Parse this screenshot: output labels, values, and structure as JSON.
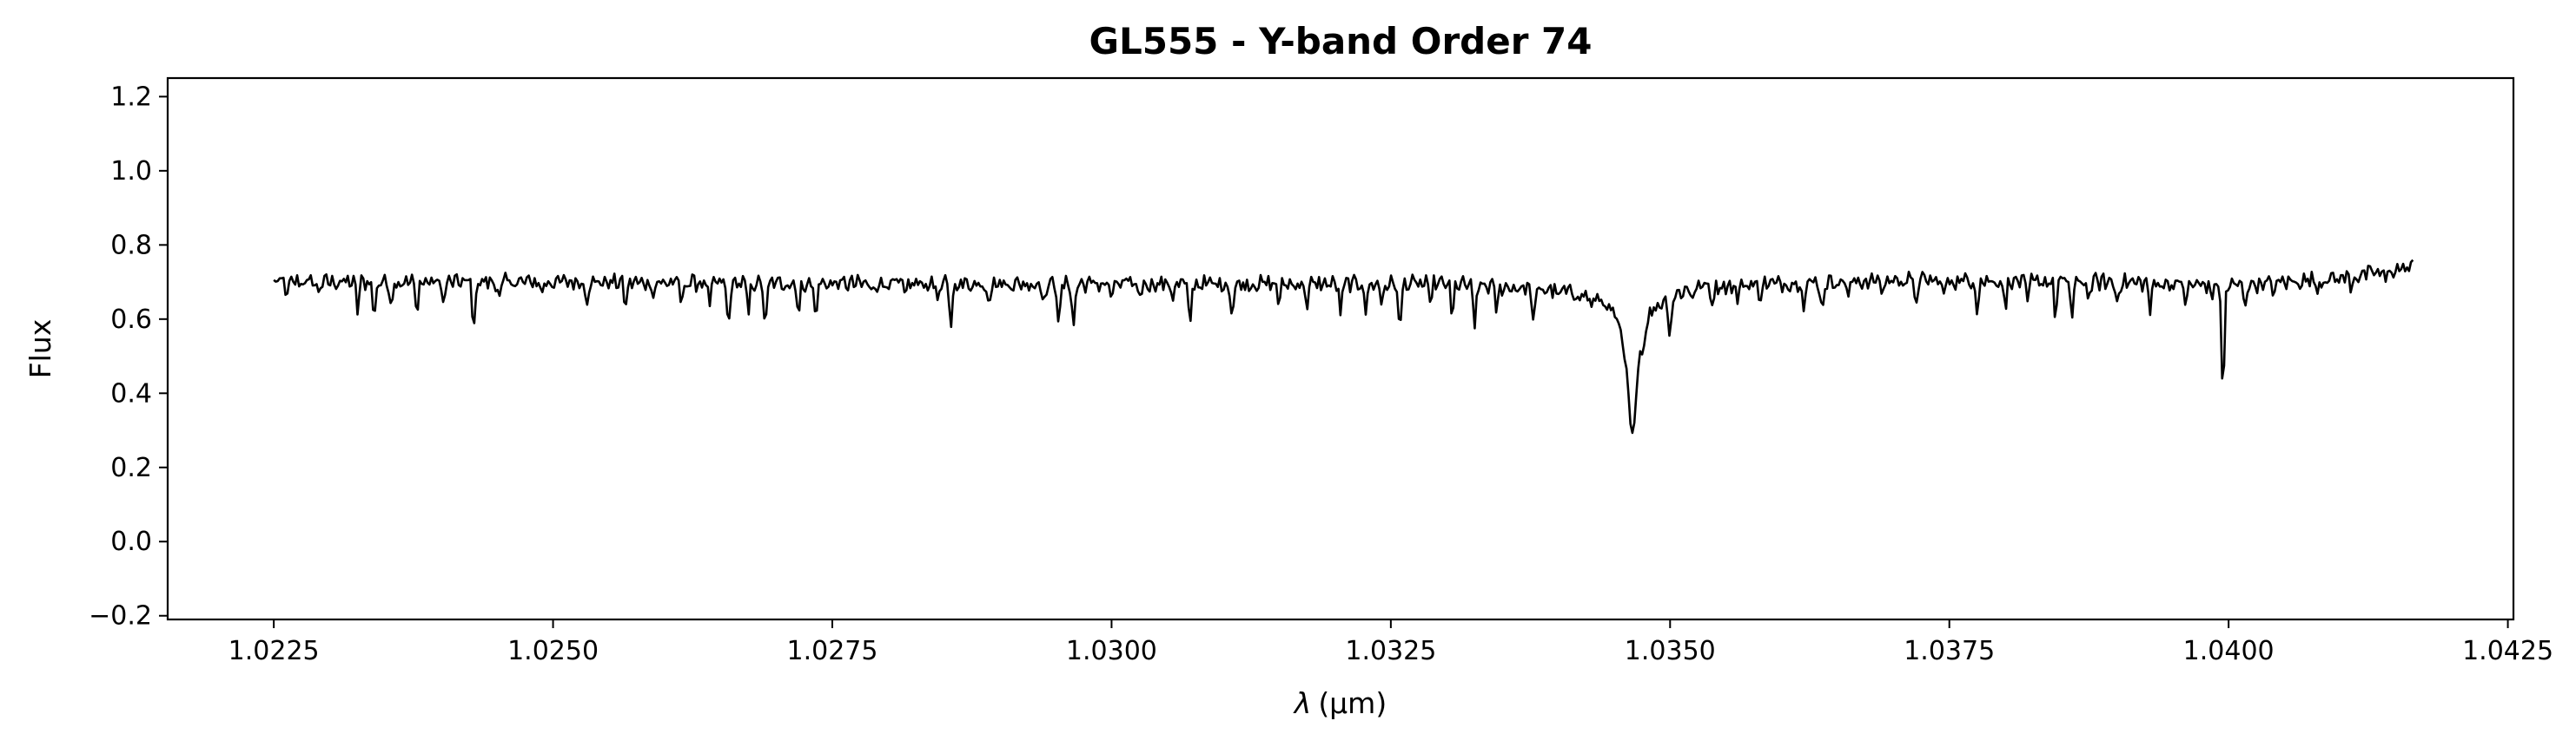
{
  "chart_data": {
    "type": "line",
    "title": "GL555 - Y-band Order 74",
    "xlabel_symbol": "λ",
    "xlabel_unit": "(μm)",
    "ylabel": "Flux",
    "xlim": [
      1.02155,
      1.04255
    ],
    "ylim": [
      -0.21,
      1.25
    ],
    "x_ticks": [
      1.0225,
      1.025,
      1.0275,
      1.03,
      1.0325,
      1.035,
      1.0375,
      1.04,
      1.0425
    ],
    "x_tick_labels": [
      "1.0225",
      "1.0250",
      "1.0275",
      "1.0300",
      "1.0325",
      "1.0350",
      "1.0375",
      "1.0400",
      "1.0425"
    ],
    "y_ticks": [
      -0.2,
      0.0,
      0.2,
      0.4,
      0.6,
      0.8,
      1.0,
      1.2
    ],
    "y_tick_labels": [
      "−0.2",
      "0.0",
      "0.2",
      "0.4",
      "0.6",
      "0.8",
      "1.0",
      "1.2"
    ],
    "grid": false,
    "series": [
      {
        "color": "#000000",
        "x_start": 1.0225,
        "x_end": 1.04165,
        "continuum": [
          [
            1.0225,
            0.7
          ],
          [
            1.024,
            0.7
          ],
          [
            1.025,
            0.7
          ],
          [
            1.028,
            0.695
          ],
          [
            1.03,
            0.695
          ],
          [
            1.033,
            0.695
          ],
          [
            1.034,
            0.68
          ],
          [
            1.0344,
            0.66
          ],
          [
            1.0346,
            0.62
          ],
          [
            1.0352,
            0.69
          ],
          [
            1.037,
            0.705
          ],
          [
            1.039,
            0.7
          ],
          [
            1.04,
            0.69
          ],
          [
            1.041,
            0.71
          ],
          [
            1.04165,
            0.74
          ]
        ],
        "absorption_lines": [
          [
            1.02262,
            0.66
          ],
          [
            1.0229,
            0.67
          ],
          [
            1.02325,
            0.625
          ],
          [
            1.0234,
            0.6
          ],
          [
            1.02355,
            0.64
          ],
          [
            1.02378,
            0.62
          ],
          [
            1.02402,
            0.64
          ],
          [
            1.02429,
            0.57
          ],
          [
            1.02452,
            0.65
          ],
          [
            1.0249,
            0.67
          ],
          [
            1.0253,
            0.65
          ],
          [
            1.02565,
            0.63
          ],
          [
            1.0259,
            0.665
          ],
          [
            1.02615,
            0.64
          ],
          [
            1.0264,
            0.63
          ],
          [
            1.02657,
            0.57
          ],
          [
            1.02675,
            0.61
          ],
          [
            1.0269,
            0.57
          ],
          [
            1.0272,
            0.61
          ],
          [
            1.02735,
            0.6
          ],
          [
            1.02785,
            0.67
          ],
          [
            1.02815,
            0.66
          ],
          [
            1.02845,
            0.65
          ],
          [
            1.02856,
            0.57
          ],
          [
            1.0289,
            0.65
          ],
          [
            1.0294,
            0.64
          ],
          [
            1.02953,
            0.58
          ],
          [
            1.02966,
            0.57
          ],
          [
            1.03,
            0.65
          ],
          [
            1.03025,
            0.66
          ],
          [
            1.03055,
            0.66
          ],
          [
            1.0307,
            0.58
          ],
          [
            1.03108,
            0.6
          ],
          [
            1.0315,
            0.64
          ],
          [
            1.03175,
            0.63
          ],
          [
            1.03205,
            0.61
          ],
          [
            1.03228,
            0.62
          ],
          [
            1.03242,
            0.64
          ],
          [
            1.03258,
            0.56
          ],
          [
            1.03285,
            0.64
          ],
          [
            1.03305,
            0.6
          ],
          [
            1.03325,
            0.57
          ],
          [
            1.03345,
            0.62
          ],
          [
            1.03378,
            0.58
          ],
          [
            1.034,
            0.66
          ],
          [
            1.0343,
            0.64
          ],
          [
            1.03457,
            0.61
          ],
          [
            1.03476,
            0.58
          ],
          [
            1.035,
            0.56
          ],
          [
            1.0352,
            0.66
          ],
          [
            1.03538,
            0.64
          ],
          [
            1.0356,
            0.65
          ],
          [
            1.0358,
            0.66
          ],
          [
            1.0362,
            0.64
          ],
          [
            1.03636,
            0.62
          ],
          [
            1.0366,
            0.66
          ],
          [
            1.0369,
            0.67
          ],
          [
            1.0372,
            0.64
          ],
          [
            1.03745,
            0.66
          ],
          [
            1.03775,
            0.63
          ],
          [
            1.038,
            0.63
          ],
          [
            1.0382,
            0.64
          ],
          [
            1.03845,
            0.61
          ],
          [
            1.0386,
            0.6
          ],
          [
            1.03875,
            0.65
          ],
          [
            1.039,
            0.64
          ],
          [
            1.0393,
            0.62
          ],
          [
            1.03962,
            0.64
          ],
          [
            1.03985,
            0.66
          ],
          [
            1.03995,
            0.38
          ],
          [
            1.04015,
            0.64
          ],
          [
            1.0404,
            0.67
          ],
          [
            1.0408,
            0.68
          ],
          [
            1.0411,
            0.69
          ],
          [
            1.0414,
            0.7
          ]
        ],
        "broad_features": [
          [
            1.03466,
            0.285,
            0.00028
          ]
        ]
      }
    ]
  }
}
